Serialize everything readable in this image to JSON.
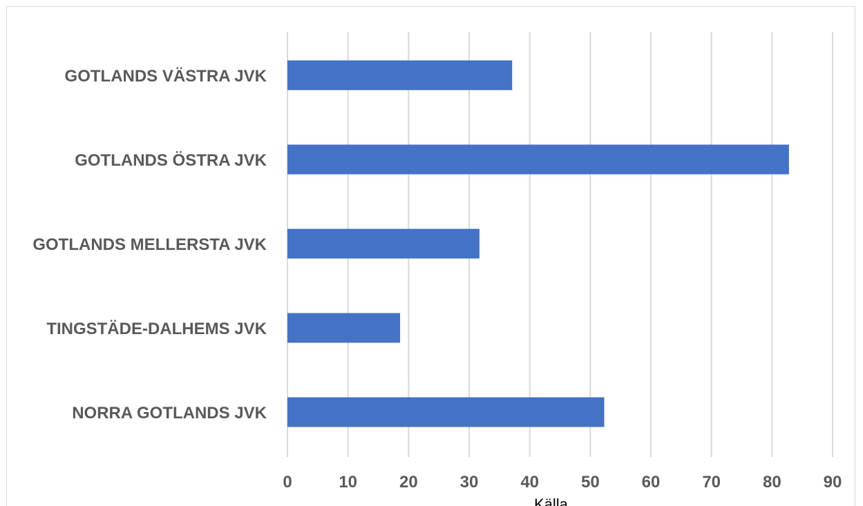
{
  "chart_data": {
    "type": "bar",
    "orientation": "horizontal",
    "categories": [
      "GOTLANDS VÄSTRA JVK",
      "GOTLANDS ÖSTRA JVK",
      "GOTLANDS MELLERSTA JVK",
      "TINGSTÄDE-DALHEMS JVK",
      "NORRA GOTLANDS JVK"
    ],
    "values": [
      37.1,
      82.8,
      31.7,
      18.6,
      52.3
    ],
    "xlim": [
      0,
      90
    ],
    "x_ticks": [
      "0",
      "10",
      "20",
      "30",
      "40",
      "50",
      "60",
      "70",
      "80",
      "90"
    ],
    "grid": "vertical",
    "bar_color": "#4472c4",
    "grid_color": "#d9d9d9",
    "label_color": "#595959"
  },
  "footer_text": "Källa"
}
